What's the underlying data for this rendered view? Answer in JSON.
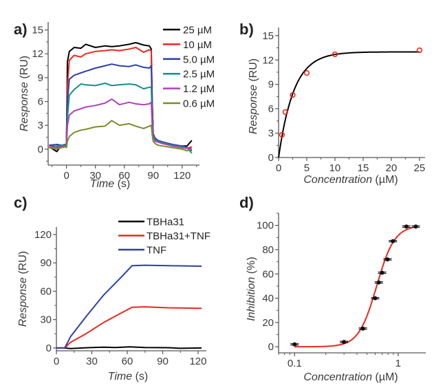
{
  "chart_data": [
    {
      "panel": "a)",
      "type": "line",
      "xlabel": "Time (s)",
      "ylabel": "Response (RU)",
      "xlim": [
        -19,
        138
      ],
      "ylim": [
        -2,
        16
      ],
      "xscale": "linear",
      "xticks": [
        0,
        30,
        60,
        90,
        120
      ],
      "xminor": 15,
      "yticks": [
        0,
        3,
        6,
        9,
        12,
        15
      ],
      "yminor": 1.5,
      "legend": "top-right",
      "x": [
        -18,
        -10,
        -5,
        -1,
        0,
        1,
        3,
        8,
        15,
        20,
        30,
        40,
        47,
        55,
        65,
        72,
        80,
        86,
        88,
        89,
        90,
        92,
        95,
        100,
        110,
        120,
        125,
        130
      ],
      "series": [
        {
          "name": "25  µM",
          "color": "#000000",
          "values": [
            0.3,
            -0.3,
            0.5,
            0.4,
            0.5,
            11,
            12.3,
            12.8,
            12.7,
            13.2,
            12.8,
            13,
            12.9,
            13,
            13.2,
            13.4,
            13.1,
            13,
            12.6,
            6,
            2,
            1.3,
            1,
            0.7,
            0.5,
            0.4,
            0.4,
            1.1
          ]
        },
        {
          "name": "10  µM",
          "color": "#e8281f",
          "values": [
            0.5,
            0.3,
            0.4,
            0.5,
            0.6,
            8,
            11.2,
            11.8,
            11.6,
            12,
            12.3,
            12.4,
            12.5,
            12.4,
            12.6,
            12.8,
            12.2,
            12.5,
            12.4,
            6,
            2,
            1.2,
            0.9,
            0.7,
            0.5,
            0.2,
            0.1,
            0.3
          ]
        },
        {
          "name": "5.0 µM",
          "color": "#2c3fa6",
          "values": [
            0.5,
            0.6,
            0.5,
            0.6,
            0.7,
            6,
            8.8,
            9.3,
            9.6,
            9.8,
            10.2,
            10.5,
            10.7,
            10.5,
            10.4,
            10.6,
            10.3,
            10.2,
            10.5,
            5,
            1.8,
            1.4,
            1.1,
            0.9,
            0.6,
            0.4,
            0.2,
            -0.2
          ]
        },
        {
          "name": "2.5 µM",
          "color": "#13908a",
          "values": [
            0.2,
            0.4,
            0.5,
            0.5,
            0.6,
            4,
            6.8,
            7.5,
            8.2,
            8.1,
            8.0,
            8.3,
            8.0,
            8.1,
            8.2,
            8.1,
            7.6,
            7.8,
            7.8,
            4,
            1.6,
            1.2,
            1,
            0.8,
            0.5,
            0.3,
            0.2,
            -0.5
          ]
        },
        {
          "name": "1.2 µM",
          "color": "#b040b8",
          "values": [
            0.3,
            0.1,
            0.4,
            0.3,
            0.4,
            3,
            4.3,
            4.8,
            5.1,
            5.3,
            5.5,
            5.8,
            6.3,
            5.6,
            5.9,
            5.7,
            5.6,
            5.7,
            5.9,
            3,
            1.5,
            1,
            0.9,
            0.7,
            0.4,
            0.2,
            0.1,
            0.1
          ]
        },
        {
          "name": "0.6 µM",
          "color": "#7a8a28",
          "values": [
            0.2,
            0.0,
            0.2,
            0.3,
            0.2,
            1,
            1.6,
            2.1,
            2.4,
            2.5,
            2.8,
            2.9,
            3.6,
            3.0,
            3.2,
            2.9,
            2.6,
            2.9,
            3.0,
            1.8,
            1,
            0.7,
            0.5,
            0.4,
            0.2,
            0.0,
            -0.2,
            0.0
          ]
        }
      ]
    },
    {
      "panel": "b)",
      "type": "scatter",
      "xlabel": "Concentration (µM)",
      "ylabel": "Response (RU)",
      "xlim": [
        0,
        26
      ],
      "ylim": [
        0,
        16
      ],
      "xscale": "linear",
      "xticks": [
        0,
        5,
        10,
        15,
        20,
        25
      ],
      "xminor": 2.5,
      "yticks": [
        0,
        3,
        6,
        9,
        12,
        15
      ],
      "yminor": 1.5,
      "points": {
        "color": "#e8281f",
        "x": [
          0.6,
          1.2,
          2.5,
          5,
          10,
          25
        ],
        "y": [
          2.8,
          5.6,
          7.7,
          10.4,
          12.7,
          13.2
        ]
      },
      "fit": {
        "model": "exponential-saturation",
        "color": "#000000",
        "bmax": 13,
        "k": 2.7,
        "x_from": 0,
        "x_to": 25
      }
    },
    {
      "panel": "c)",
      "type": "line",
      "xlabel": "Time (s)",
      "ylabel": "Response (RU)",
      "xlim": [
        0,
        127
      ],
      "ylim": [
        -3,
        128
      ],
      "xscale": "linear",
      "xticks": [
        0,
        30,
        60,
        90,
        120
      ],
      "xminor": 15,
      "yticks": [
        0,
        30,
        60,
        90,
        120
      ],
      "yminor": 15,
      "legend": "top-right",
      "series": [
        {
          "name": "TBHa31",
          "color": "#000000",
          "x": [
            0,
            7,
            12,
            25,
            40,
            50,
            62,
            75,
            95,
            105,
            123
          ],
          "values": [
            0,
            0,
            -0.6,
            0.2,
            0.8,
            0.4,
            1.2,
            0.4,
            0.3,
            -0.4,
            0
          ]
        },
        {
          "name": "TBHa31+TNF",
          "color": "#e8281f",
          "x": [
            0,
            7,
            12,
            25,
            40,
            55,
            64,
            75,
            95,
            123
          ],
          "values": [
            0,
            0,
            6,
            15,
            27,
            37,
            43,
            43.5,
            42.5,
            42
          ]
        },
        {
          "name": "TNF",
          "color": "#2c3fa6",
          "x": [
            0,
            7,
            12,
            25,
            40,
            55,
            64,
            75,
            95,
            123
          ],
          "values": [
            0,
            0,
            12,
            33,
            56,
            75,
            87,
            87.5,
            87,
            86.5
          ]
        }
      ]
    },
    {
      "panel": "d)",
      "type": "scatter",
      "xlabel": "Concentration (µM)",
      "ylabel": "Inhibition (%)",
      "xlim": [
        0.07,
        1.85
      ],
      "ylim": [
        -5,
        110
      ],
      "xscale": "log",
      "xticks": [
        0.1,
        1
      ],
      "xtick_labels": [
        "0.1",
        "1"
      ],
      "yticks": [
        0,
        20,
        40,
        60,
        80,
        100
      ],
      "yminor": 10,
      "points": {
        "color": "#111111",
        "x": [
          0.1,
          0.3,
          0.457,
          0.6,
          0.65,
          0.7,
          0.79,
          0.89,
          1.2,
          1.48
        ],
        "y": [
          2,
          4,
          15,
          40,
          53,
          61,
          72,
          87,
          99,
          99
        ]
      },
      "fit": {
        "model": "hill",
        "color": "#e8281f",
        "top": 100,
        "ic50": 0.62,
        "n": 5,
        "x_from": 0.1,
        "x_to": 1.48
      }
    }
  ]
}
